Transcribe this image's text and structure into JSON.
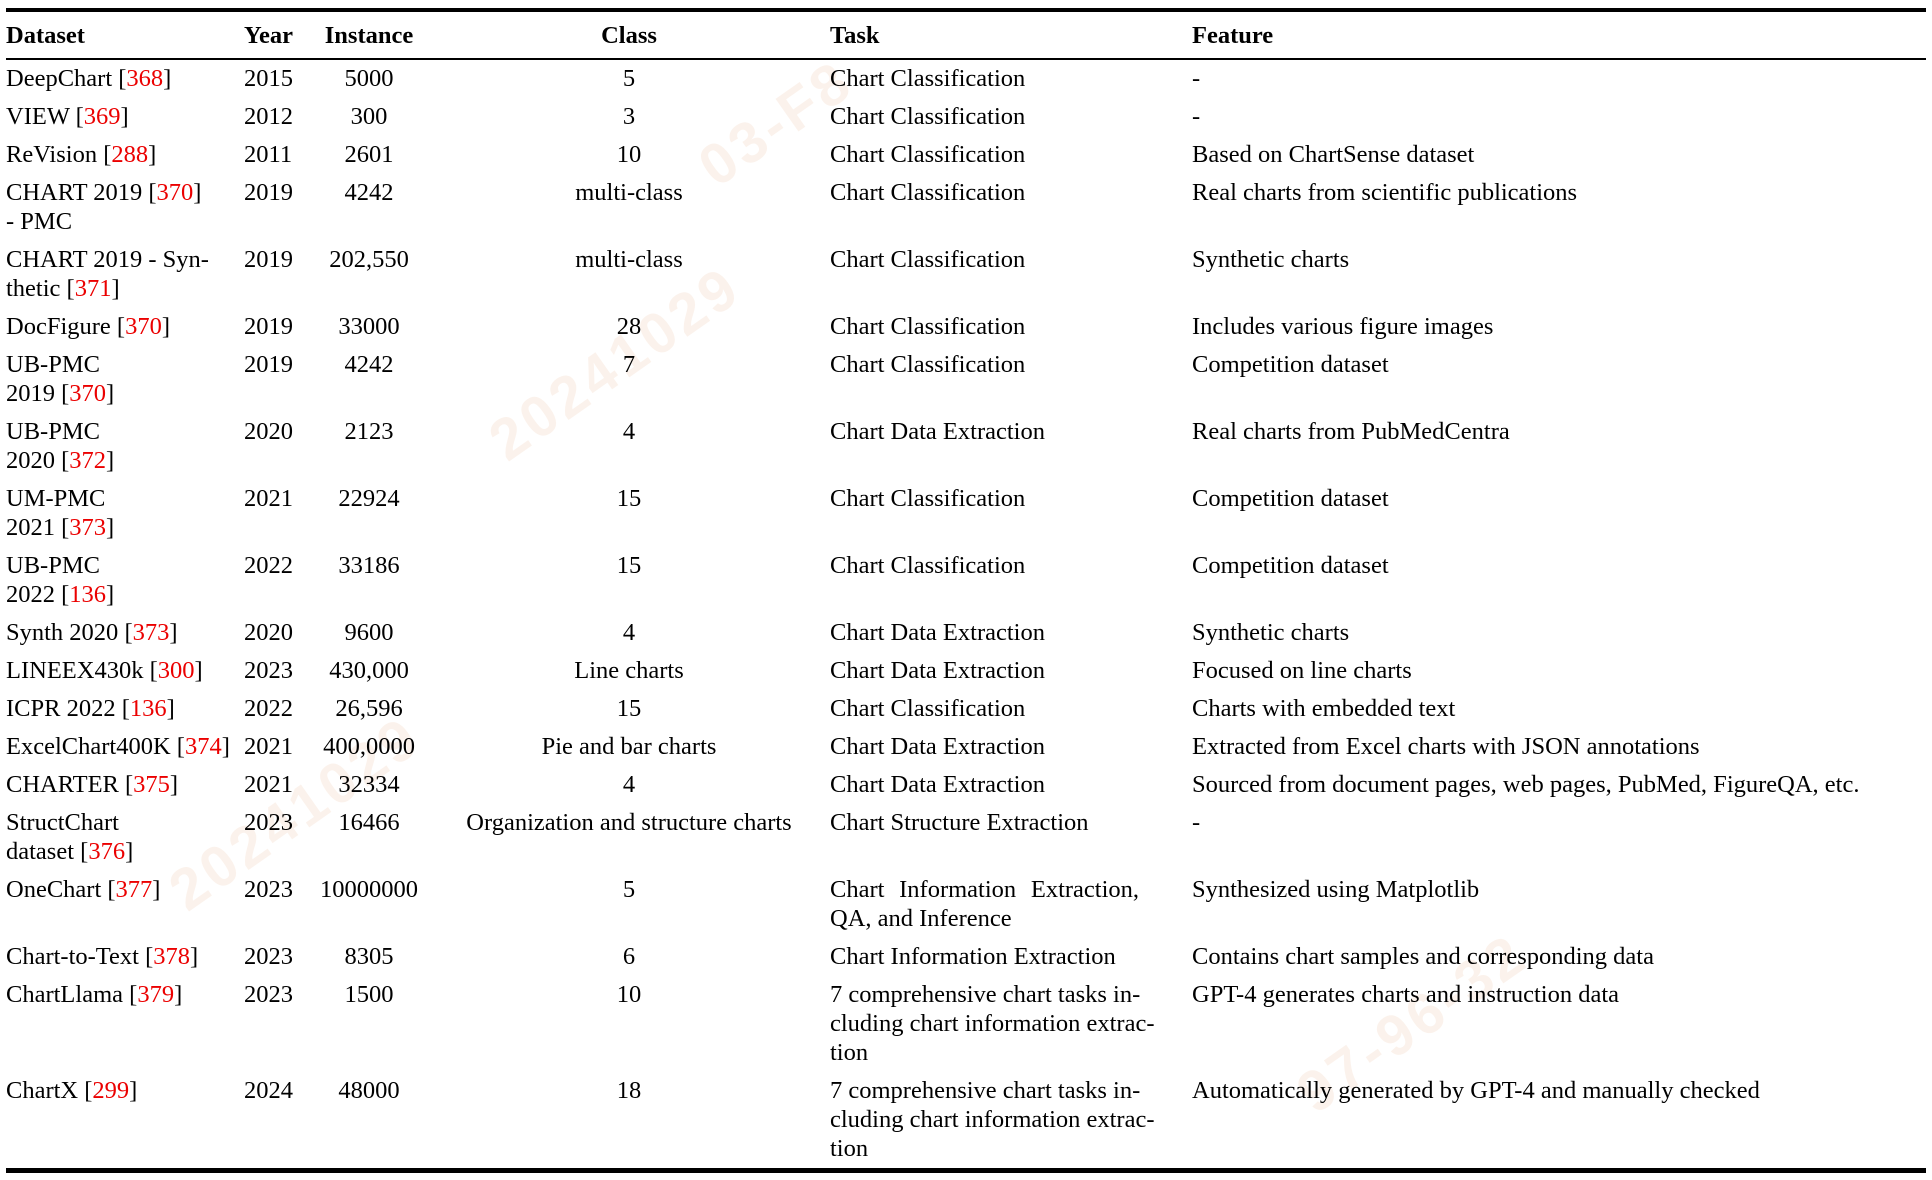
{
  "watermark": {
    "color": "#dd8a4e",
    "fragments": [
      "20241029",
      "03-F8",
      "20241029",
      "97-96-32"
    ]
  },
  "table": {
    "columns": [
      "Dataset",
      "Year",
      "Instance",
      "Class",
      "Task",
      "Feature"
    ],
    "rows": [
      {
        "dataset": [
          {
            "text": "DeepChart "
          },
          {
            "cite": "368"
          }
        ],
        "year": "2015",
        "instance": "5000",
        "class": "5",
        "task": [
          "Chart Classification"
        ],
        "feature": "-"
      },
      {
        "dataset": [
          {
            "text": "VIEW "
          },
          {
            "cite": "369"
          }
        ],
        "year": "2012",
        "instance": "300",
        "class": "3",
        "task": [
          "Chart Classification"
        ],
        "feature": "-"
      },
      {
        "dataset": [
          {
            "text": "ReVision "
          },
          {
            "cite": "288"
          }
        ],
        "year": "2011",
        "instance": "2601",
        "class": "10",
        "task": [
          "Chart Classification"
        ],
        "feature": "Based on ChartSense dataset"
      },
      {
        "dataset": [
          {
            "text": "CHART 2019 "
          },
          {
            "cite": "370"
          },
          {
            "br": true
          },
          {
            "text": "- PMC"
          }
        ],
        "year": "2019",
        "instance": "4242",
        "class": "multi-class",
        "task": [
          "Chart Classification"
        ],
        "feature": "Real charts from scientific publications"
      },
      {
        "dataset": [
          {
            "text": "CHART 2019 - Syn-"
          },
          {
            "br": true
          },
          {
            "text": "thetic "
          },
          {
            "cite": "371"
          }
        ],
        "year": "2019",
        "instance": "202,550",
        "class": "multi-class",
        "task": [
          "Chart Classification"
        ],
        "feature": "Synthetic charts"
      },
      {
        "dataset": [
          {
            "text": "DocFigure "
          },
          {
            "cite": "370"
          }
        ],
        "year": "2019",
        "instance": "33000",
        "class": "28",
        "task": [
          "Chart Classification"
        ],
        "feature": "Includes various figure images"
      },
      {
        "dataset": [
          {
            "text": "UB-PMC"
          },
          {
            "br": true
          },
          {
            "text": "2019 "
          },
          {
            "cite": "370"
          }
        ],
        "year": "2019",
        "instance": "4242",
        "class": "7",
        "task": [
          "Chart Classification"
        ],
        "feature": "Competition dataset"
      },
      {
        "dataset": [
          {
            "text": "UB-PMC"
          },
          {
            "br": true
          },
          {
            "text": "2020 "
          },
          {
            "cite": "372"
          }
        ],
        "year": "2020",
        "instance": "2123",
        "class": "4",
        "task": [
          "Chart Data Extraction"
        ],
        "feature": "Real charts from PubMedCentra"
      },
      {
        "dataset": [
          {
            "text": "UM-PMC"
          },
          {
            "br": true
          },
          {
            "text": "2021 "
          },
          {
            "cite": "373"
          }
        ],
        "year": "2021",
        "instance": "22924",
        "class": "15",
        "task": [
          "Chart Classification"
        ],
        "feature": "Competition dataset"
      },
      {
        "dataset": [
          {
            "text": "UB-PMC"
          },
          {
            "br": true
          },
          {
            "text": "2022 "
          },
          {
            "cite": "136"
          }
        ],
        "year": "2022",
        "instance": "33186",
        "class": "15",
        "task": [
          "Chart Classification"
        ],
        "feature": "Competition dataset"
      },
      {
        "dataset": [
          {
            "text": "Synth 2020 "
          },
          {
            "cite": "373"
          }
        ],
        "year": "2020",
        "instance": "9600",
        "class": "4",
        "task": [
          "Chart Data Extraction"
        ],
        "feature": "Synthetic charts"
      },
      {
        "dataset": [
          {
            "text": "LINEEX430k "
          },
          {
            "cite": "300"
          }
        ],
        "year": "2023",
        "instance": "430,000",
        "class": "Line charts",
        "task": [
          "Chart Data Extraction"
        ],
        "feature": "Focused on line charts"
      },
      {
        "dataset": [
          {
            "text": "ICPR 2022 "
          },
          {
            "cite": "136"
          }
        ],
        "year": "2022",
        "instance": "26,596",
        "class": "15",
        "task": [
          "Chart Classification"
        ],
        "feature": "Charts with embedded text"
      },
      {
        "dataset": [
          {
            "text": "ExcelChart400K "
          },
          {
            "cite": "374"
          }
        ],
        "year": "2021",
        "instance": "400,0000",
        "class": "Pie and bar charts",
        "task": [
          "Chart Data Extraction"
        ],
        "feature": "Extracted from Excel charts with JSON annotations"
      },
      {
        "dataset": [
          {
            "text": "CHARTER "
          },
          {
            "cite": "375"
          }
        ],
        "year": "2021",
        "instance": "32334",
        "class": "4",
        "task": [
          "Chart Data Extraction"
        ],
        "feature": "Sourced from document pages, web pages, PubMed, FigureQA, etc."
      },
      {
        "dataset": [
          {
            "text": "StructChart"
          },
          {
            "br": true
          },
          {
            "text": "dataset "
          },
          {
            "cite": "376"
          }
        ],
        "year": "2023",
        "instance": "16466",
        "class": "Organization and structure charts",
        "task": [
          "Chart Structure Extraction"
        ],
        "feature": "-"
      },
      {
        "dataset": [
          {
            "text": "OneChart "
          },
          {
            "cite": "377"
          }
        ],
        "year": "2023",
        "instance": "10000000",
        "class": "5",
        "task": [
          "Chart Information Extraction,",
          "QA, and Inference"
        ],
        "task_justify": true,
        "feature": "Synthesized using Matplotlib"
      },
      {
        "dataset": [
          {
            "text": "Chart-to-Text "
          },
          {
            "cite": "378"
          }
        ],
        "year": "2023",
        "instance": "8305",
        "class": "6",
        "task": [
          "Chart Information Extraction"
        ],
        "feature": "Contains chart samples and corresponding data"
      },
      {
        "dataset": [
          {
            "text": "ChartLlama "
          },
          {
            "cite": "379"
          }
        ],
        "year": "2023",
        "instance": "1500",
        "class": "10",
        "task": [
          "7 comprehensive chart tasks in-",
          "cluding chart information extrac-",
          "tion"
        ],
        "feature": "GPT-4 generates charts and instruction data"
      },
      {
        "dataset": [
          {
            "text": "ChartX "
          },
          {
            "cite": "299"
          }
        ],
        "year": "2024",
        "instance": "48000",
        "class": "18",
        "task": [
          "7 comprehensive chart tasks in-",
          "cluding chart information extrac-",
          "tion"
        ],
        "feature": "Automatically generated by GPT-4 and manually checked"
      }
    ]
  }
}
